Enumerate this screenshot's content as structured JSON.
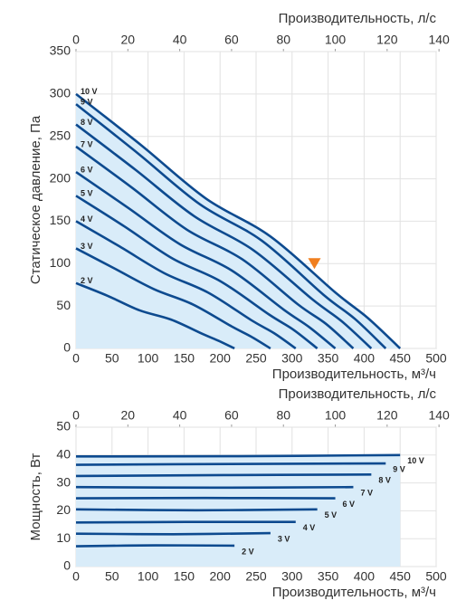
{
  "chart_data": [
    {
      "type": "line",
      "ylabel": "Статическое давление, Па",
      "xlabel": "Производительность, м³/ч",
      "x2label": "Производительность, л/с",
      "xlim": [
        0,
        500
      ],
      "xticks": [
        0,
        50,
        100,
        150,
        200,
        250,
        300,
        350,
        400,
        450,
        500
      ],
      "x2lim": [
        0,
        138.9
      ],
      "x2ticks": [
        0,
        20,
        40,
        60,
        80,
        100,
        120,
        140
      ],
      "ylim": [
        0,
        350
      ],
      "yticks": [
        0,
        50,
        100,
        150,
        200,
        250,
        300,
        350
      ],
      "grid": true,
      "area_color": "#d9ecf9",
      "label_position": "start",
      "marker": {
        "x": 331,
        "y": 100,
        "color": "#f07f1f"
      },
      "series": [
        {
          "name": "10 V",
          "color": "#0d4a8f",
          "x": [
            0,
            90,
            180,
            270,
            360,
            405,
            450
          ],
          "values": [
            300,
            240,
            177,
            132,
            66,
            36,
            0
          ]
        },
        {
          "name": "9 V",
          "color": "#0d4a8f",
          "x": [
            0,
            86,
            172,
            258,
            344,
            387,
            430
          ],
          "values": [
            288,
            230,
            170,
            127,
            63,
            35,
            0
          ]
        },
        {
          "name": "8 V",
          "color": "#0d4a8f",
          "x": [
            0,
            82,
            164,
            246,
            328,
            369,
            410
          ],
          "values": [
            264,
            211,
            156,
            116,
            58,
            32,
            0
          ]
        },
        {
          "name": "7 V",
          "color": "#0d4a8f",
          "x": [
            0,
            77,
            154,
            231,
            308,
            347,
            385
          ],
          "values": [
            238,
            190,
            140,
            105,
            52,
            29,
            0
          ]
        },
        {
          "name": "6 V",
          "color": "#0d4a8f",
          "x": [
            0,
            72,
            144,
            216,
            288,
            324,
            360
          ],
          "values": [
            208,
            166,
            123,
            92,
            46,
            25,
            0
          ]
        },
        {
          "name": "5 V",
          "color": "#0d4a8f",
          "x": [
            0,
            67,
            134,
            201,
            268,
            302,
            335
          ],
          "values": [
            180,
            144,
            106,
            79,
            40,
            22,
            0
          ]
        },
        {
          "name": "4 V",
          "color": "#0d4a8f",
          "x": [
            0,
            61,
            122,
            183,
            244,
            275,
            305
          ],
          "values": [
            150,
            120,
            89,
            66,
            33,
            18,
            0
          ]
        },
        {
          "name": "3 V",
          "color": "#0d4a8f",
          "x": [
            0,
            54,
            108,
            162,
            216,
            243,
            270
          ],
          "values": [
            118,
            94,
            70,
            52,
            26,
            14,
            0
          ]
        },
        {
          "name": "2 V",
          "color": "#0d4a8f",
          "x": [
            0,
            44,
            88,
            132,
            176,
            198,
            220
          ],
          "values": [
            77,
            62,
            45,
            34,
            17,
            9,
            0
          ]
        }
      ]
    },
    {
      "type": "line",
      "ylabel": "Мощность, Вт",
      "xlabel": "Производительность, м³/ч",
      "x2label": "Производительность, л/с",
      "xlim": [
        0,
        500
      ],
      "xticks": [
        0,
        50,
        100,
        150,
        200,
        250,
        300,
        350,
        400,
        450,
        500
      ],
      "x2lim": [
        0,
        138.9
      ],
      "x2ticks": [
        0,
        20,
        40,
        60,
        80,
        100,
        120,
        140
      ],
      "ylim": [
        0,
        50
      ],
      "yticks": [
        0,
        10,
        20,
        30,
        40,
        50
      ],
      "grid": true,
      "area_color": "#d9ecf9",
      "label_position": "end",
      "series": [
        {
          "name": "10 V",
          "color": "#0d4a8f",
          "x": [
            0,
            225,
            450
          ],
          "values": [
            39.5,
            39.6,
            40
          ]
        },
        {
          "name": "9 V",
          "color": "#0d4a8f",
          "x": [
            0,
            215,
            430
          ],
          "values": [
            36.5,
            36.8,
            37
          ]
        },
        {
          "name": "8 V",
          "color": "#0d4a8f",
          "x": [
            0,
            205,
            410
          ],
          "values": [
            32.5,
            32.8,
            33
          ]
        },
        {
          "name": "7 V",
          "color": "#0d4a8f",
          "x": [
            0,
            192,
            385
          ],
          "values": [
            28.5,
            28.3,
            28.5
          ]
        },
        {
          "name": "6 V",
          "color": "#0d4a8f",
          "x": [
            0,
            180,
            360
          ],
          "values": [
            24.5,
            24.6,
            24.5
          ]
        },
        {
          "name": "5 V",
          "color": "#0d4a8f",
          "x": [
            0,
            167,
            335
          ],
          "values": [
            20.5,
            20.2,
            20.5
          ]
        },
        {
          "name": "4 V",
          "color": "#0d4a8f",
          "x": [
            0,
            152,
            305
          ],
          "values": [
            15.8,
            16,
            16
          ]
        },
        {
          "name": "3 V",
          "color": "#0d4a8f",
          "x": [
            0,
            135,
            270
          ],
          "values": [
            11.8,
            11.6,
            12
          ]
        },
        {
          "name": "2 V",
          "color": "#0d4a8f",
          "x": [
            0,
            110,
            220
          ],
          "values": [
            7.3,
            7.6,
            7.5
          ]
        }
      ]
    }
  ]
}
